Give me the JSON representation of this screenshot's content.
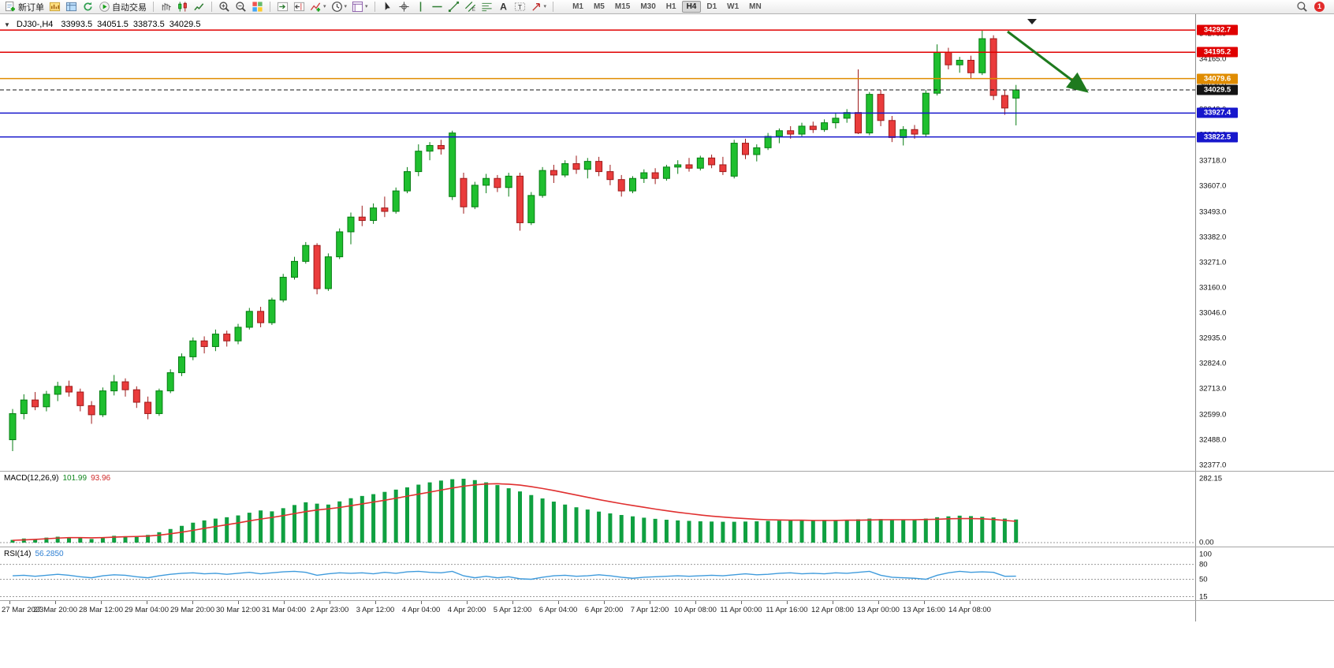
{
  "toolbar": {
    "items": [
      {
        "name": "new-order",
        "icon": "new-order",
        "label": "新订单"
      },
      {
        "name": "charts",
        "icon": "charts"
      },
      {
        "name": "profiles",
        "icon": "profiles"
      },
      {
        "name": "refresh",
        "icon": "refresh"
      },
      {
        "name": "autotrading",
        "icon": "autotrading",
        "label": "自动交易"
      },
      {
        "sep": true
      },
      {
        "name": "chart-bars",
        "icon": "bar-chart"
      },
      {
        "name": "chart-candles",
        "icon": "candle-chart"
      },
      {
        "name": "chart-line",
        "icon": "line-chart"
      },
      {
        "sep": true
      },
      {
        "name": "zoom-in",
        "icon": "zoom-in"
      },
      {
        "name": "zoom-out",
        "icon": "zoom-out"
      },
      {
        "name": "tile-windows",
        "icon": "tile-windows"
      },
      {
        "sep": true
      },
      {
        "name": "auto-scroll",
        "icon": "auto-scroll"
      },
      {
        "name": "chart-shift",
        "icon": "chart-shift"
      },
      {
        "name": "indicators",
        "icon": "indicators",
        "dropdown": true
      },
      {
        "name": "periods",
        "icon": "clock",
        "dropdown": true
      },
      {
        "name": "templates",
        "icon": "templates",
        "dropdown": true
      },
      {
        "sep": true
      },
      {
        "name": "cursor",
        "icon": "cursor"
      },
      {
        "name": "crosshair",
        "icon": "crosshair"
      },
      {
        "name": "vertical-line",
        "icon": "vline"
      },
      {
        "name": "horizontal-line",
        "icon": "hline"
      },
      {
        "name": "trendline",
        "icon": "trendline"
      },
      {
        "name": "equidistant-channel",
        "icon": "channel"
      },
      {
        "name": "fibonacci",
        "icon": "fibonacci"
      },
      {
        "name": "text",
        "icon": "text"
      },
      {
        "name": "text-label",
        "icon": "label"
      },
      {
        "name": "arrows",
        "icon": "arrows",
        "dropdown": true
      },
      {
        "sep": true
      }
    ],
    "timeframes": [
      "M1",
      "M5",
      "M15",
      "M30",
      "H1",
      "H4",
      "D1",
      "W1",
      "MN"
    ],
    "active_timeframe": "H4",
    "notification_count": "1"
  },
  "chart": {
    "title": "DJ30-,H4",
    "ohlc": {
      "open": "33993.5",
      "high": "34051.5",
      "low": "33873.5",
      "close": "34029.5"
    },
    "price_axis_labels": [
      "34276.0",
      "34165.0",
      "34054.0",
      "33943.0",
      "33832.0",
      "33718.0",
      "33607.0",
      "33493.0",
      "33382.0",
      "33271.0",
      "33160.0",
      "33046.0",
      "32935.0",
      "32824.0",
      "32713.0",
      "32599.0",
      "32488.0",
      "32377.0"
    ],
    "levels": [
      {
        "price": 34292.7,
        "label": "34292.7",
        "color": "#e00000"
      },
      {
        "price": 34195.2,
        "label": "34195.2",
        "color": "#e00000"
      },
      {
        "price": 34079.6,
        "label": "34079.6",
        "color": "#e08c00"
      },
      {
        "price": 33927.4,
        "label": "33927.4",
        "color": "#1717cc"
      },
      {
        "price": 33822.5,
        "label": "33822.5",
        "color": "#1717cc"
      }
    ],
    "current_price": {
      "price": 34029.5,
      "label": "34029.5",
      "color": "#141414"
    }
  },
  "chart_data": {
    "type": "candlestick",
    "symbol": "DJ30-",
    "period": "H4",
    "ylim": [
      32367,
      34335
    ],
    "candles": [
      [
        32490,
        32625,
        32440,
        32605
      ],
      [
        32605,
        32690,
        32580,
        32665
      ],
      [
        32665,
        32700,
        32620,
        32635
      ],
      [
        32635,
        32705,
        32615,
        32690
      ],
      [
        32690,
        32745,
        32660,
        32725
      ],
      [
        32725,
        32750,
        32680,
        32700
      ],
      [
        32700,
        32715,
        32615,
        32640
      ],
      [
        32640,
        32660,
        32560,
        32600
      ],
      [
        32600,
        32720,
        32590,
        32705
      ],
      [
        32705,
        32775,
        32685,
        32745
      ],
      [
        32745,
        32760,
        32680,
        32710
      ],
      [
        32710,
        32725,
        32630,
        32655
      ],
      [
        32655,
        32680,
        32580,
        32605
      ],
      [
        32605,
        32715,
        32595,
        32705
      ],
      [
        32705,
        32800,
        32695,
        32785
      ],
      [
        32785,
        32870,
        32770,
        32855
      ],
      [
        32855,
        32940,
        32840,
        32925
      ],
      [
        32925,
        32945,
        32870,
        32900
      ],
      [
        32900,
        32975,
        32880,
        32955
      ],
      [
        32955,
        32970,
        32900,
        32925
      ],
      [
        32925,
        33000,
        32910,
        32985
      ],
      [
        32985,
        33070,
        32975,
        33055
      ],
      [
        33055,
        33075,
        32985,
        33005
      ],
      [
        33005,
        33115,
        32995,
        33105
      ],
      [
        33105,
        33220,
        33095,
        33205
      ],
      [
        33205,
        33295,
        33195,
        33275
      ],
      [
        33275,
        33360,
        33265,
        33345
      ],
      [
        33345,
        33355,
        33130,
        33155
      ],
      [
        33155,
        33310,
        33145,
        33295
      ],
      [
        33295,
        33420,
        33285,
        33405
      ],
      [
        33405,
        33490,
        33350,
        33470
      ],
      [
        33470,
        33520,
        33430,
        33455
      ],
      [
        33455,
        33530,
        33440,
        33510
      ],
      [
        33510,
        33560,
        33470,
        33495
      ],
      [
        33495,
        33600,
        33485,
        33585
      ],
      [
        33585,
        33690,
        33575,
        33670
      ],
      [
        33670,
        33790,
        33650,
        33760
      ],
      [
        33760,
        33800,
        33720,
        33785
      ],
      [
        33785,
        33810,
        33745,
        33770
      ],
      [
        33560,
        33850,
        33545,
        33840
      ],
      [
        33640,
        33665,
        33485,
        33515
      ],
      [
        33515,
        33625,
        33505,
        33610
      ],
      [
        33610,
        33660,
        33575,
        33640
      ],
      [
        33640,
        33655,
        33580,
        33600
      ],
      [
        33600,
        33665,
        33560,
        33650
      ],
      [
        33650,
        33665,
        33410,
        33445
      ],
      [
        33445,
        33580,
        33435,
        33565
      ],
      [
        33565,
        33690,
        33555,
        33675
      ],
      [
        33675,
        33700,
        33620,
        33655
      ],
      [
        33655,
        33720,
        33645,
        33705
      ],
      [
        33705,
        33740,
        33660,
        33680
      ],
      [
        33680,
        33730,
        33640,
        33715
      ],
      [
        33715,
        33735,
        33650,
        33670
      ],
      [
        33670,
        33700,
        33610,
        33635
      ],
      [
        33635,
        33655,
        33560,
        33585
      ],
      [
        33585,
        33650,
        33575,
        33640
      ],
      [
        33640,
        33680,
        33620,
        33665
      ],
      [
        33665,
        33685,
        33615,
        33640
      ],
      [
        33640,
        33700,
        33630,
        33690
      ],
      [
        33690,
        33720,
        33660,
        33700
      ],
      [
        33700,
        33730,
        33670,
        33685
      ],
      [
        33685,
        33740,
        33675,
        33730
      ],
      [
        33730,
        33745,
        33685,
        33700
      ],
      [
        33700,
        33735,
        33655,
        33670
      ],
      [
        33650,
        33810,
        33640,
        33795
      ],
      [
        33795,
        33815,
        33725,
        33745
      ],
      [
        33745,
        33790,
        33715,
        33775
      ],
      [
        33775,
        33840,
        33765,
        33825
      ],
      [
        33825,
        33860,
        33795,
        33850
      ],
      [
        33850,
        33870,
        33815,
        33835
      ],
      [
        33835,
        33885,
        33825,
        33870
      ],
      [
        33870,
        33890,
        33840,
        33855
      ],
      [
        33855,
        33900,
        33845,
        33885
      ],
      [
        33885,
        33930,
        33860,
        33905
      ],
      [
        33905,
        33945,
        33885,
        33930
      ],
      [
        33930,
        34120,
        33835,
        33840
      ],
      [
        33840,
        34020,
        33830,
        34010
      ],
      [
        34010,
        34030,
        33870,
        33895
      ],
      [
        33895,
        33915,
        33800,
        33820
      ],
      [
        33820,
        33870,
        33785,
        33855
      ],
      [
        33855,
        33875,
        33815,
        33835
      ],
      [
        33835,
        34030,
        33825,
        34015
      ],
      [
        34015,
        34230,
        34005,
        34195
      ],
      [
        34195,
        34215,
        34120,
        34140
      ],
      [
        34140,
        34175,
        34105,
        34160
      ],
      [
        34160,
        34180,
        34080,
        34105
      ],
      [
        34105,
        34290,
        34095,
        34255
      ],
      [
        34255,
        34270,
        33985,
        34005
      ],
      [
        34005,
        34030,
        33920,
        33950
      ],
      [
        33993.5,
        34051.5,
        33873.5,
        34029.5
      ]
    ],
    "time_labels": [
      "27 Mar 2023",
      "27 Mar 20:00",
      "28 Mar 12:00",
      "29 Mar 04:00",
      "29 Mar 20:00",
      "30 Mar 12:00",
      "31 Mar 04:00",
      "2 Apr 23:00",
      "3 Apr 12:00",
      "4 Apr 04:00",
      "4 Apr 20:00",
      "5 Apr 12:00",
      "6 Apr 04:00",
      "6 Apr 20:00",
      "7 Apr 12:00",
      "10 Apr 08:00",
      "11 Apr 00:00",
      "11 Apr 16:00",
      "12 Apr 08:00",
      "13 Apr 00:00",
      "13 Apr 16:00",
      "14 Apr 08:00"
    ],
    "indicators": {
      "macd": {
        "name": "MACD(12,26,9)",
        "current": "101.99",
        "signal_current": "93.96",
        "axis_max": "282.15",
        "axis_min": "0.00",
        "histogram": [
          12,
          18,
          15,
          22,
          26,
          24,
          20,
          16,
          24,
          30,
          28,
          25,
          34,
          46,
          60,
          74,
          88,
          98,
          106,
          112,
          120,
          132,
          142,
          138,
          152,
          166,
          178,
          172,
          168,
          182,
          196,
          206,
          214,
          224,
          234,
          244,
          256,
          266,
          274,
          280,
          282,
          276,
          266,
          254,
          240,
          226,
          210,
          195,
          181,
          168,
          156,
          146,
          137,
          129,
          122,
          116,
          110,
          105,
          101,
          98,
          96,
          94,
          93,
          92,
          92,
          93,
          94,
          96,
          97,
          98,
          99,
          99,
          100,
          100,
          101,
          103,
          106,
          104,
          101,
          100,
          102,
          106,
          112,
          116,
          119,
          117,
          114,
          111,
          106,
          102
        ],
        "signal": [
          10,
          12,
          14,
          17,
          20,
          22,
          22,
          21,
          22,
          24,
          26,
          27,
          29,
          33,
          39,
          46,
          54,
          63,
          71,
          79,
          87,
          96,
          104,
          111,
          119,
          128,
          137,
          144,
          149,
          155,
          163,
          171,
          179,
          187,
          196,
          205,
          214,
          223,
          232,
          241,
          249,
          255,
          259,
          260,
          258,
          254,
          247,
          239,
          230,
          220,
          210,
          200,
          190,
          181,
          172,
          164,
          156,
          148,
          141,
          134,
          128,
          122,
          117,
          113,
          109,
          106,
          103,
          101,
          100,
          99,
          99,
          98,
          98,
          98,
          99,
          99,
          100,
          101,
          101,
          101,
          101,
          102,
          103,
          105,
          106,
          106,
          105,
          102,
          98,
          94
        ]
      },
      "rsi": {
        "name": "RSI(14)",
        "current": "56.2850",
        "levels": [
          "100",
          "80",
          "50",
          "15"
        ],
        "values": [
          57,
          58,
          56,
          58,
          60,
          58,
          55,
          53,
          57,
          59,
          58,
          55,
          53,
          57,
          60,
          62,
          63,
          61,
          62,
          60,
          62,
          64,
          61,
          63,
          65,
          66,
          64,
          58,
          61,
          63,
          62,
          63,
          61,
          64,
          62,
          65,
          66,
          64,
          63,
          66,
          57,
          53,
          56,
          53,
          55,
          51,
          50,
          54,
          57,
          58,
          56,
          57,
          59,
          57,
          54,
          52,
          54,
          55,
          56,
          57,
          56,
          57,
          58,
          57,
          59,
          61,
          59,
          60,
          62,
          63,
          61,
          62,
          61,
          63,
          62,
          64,
          66,
          58,
          54,
          53,
          52,
          50,
          58,
          63,
          66,
          64,
          65,
          64,
          56,
          56.3
        ]
      }
    }
  },
  "colors": {
    "bull": "#1fbf2f",
    "bull_border": "#067d12",
    "bear": "#ea3c3c",
    "bear_border": "#9e1a1a",
    "macd_histogram": "#0fa040",
    "macd_signal": "#e03030",
    "rsi_line": "#3f9bdc",
    "arrow": "#1e7a1e",
    "level_red": "#e00000",
    "level_orange": "#e08c00",
    "level_blue": "#1717cc",
    "current_price": "#141414"
  }
}
